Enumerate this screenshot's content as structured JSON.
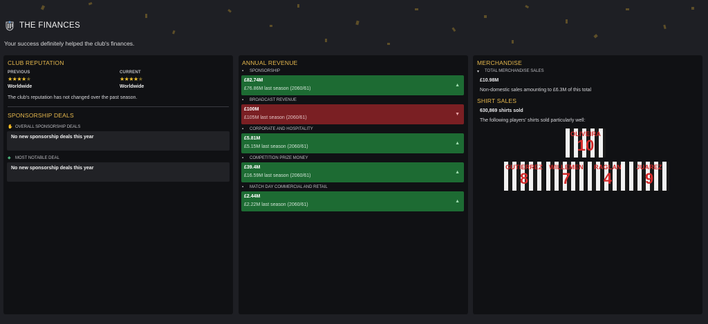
{
  "header": {
    "title": "THE FINANCES",
    "subtitle": "Your success definitely helped the club's finances."
  },
  "club_reputation": {
    "title": "CLUB REPUTATION",
    "previous_label": "PREVIOUS",
    "previous_stars": 4.5,
    "previous_value": "Worldwide",
    "current_label": "CURRENT",
    "current_stars": 4.5,
    "current_value": "Worldwide",
    "note": "The club's reputation has not changed over the past season."
  },
  "sponsorship": {
    "title": "SPONSORSHIP DEALS",
    "overall_label": "OVERALL SPONSORSHIP DEALS",
    "overall_value": "No new sponsorship deals this year",
    "notable_label": "MOST NOTABLE DEAL",
    "notable_value": "No new sponsorship deals this year"
  },
  "revenue": {
    "title": "ANNUAL REVENUE",
    "items": [
      {
        "label": "SPONSORSHIP",
        "value": "£82.74M",
        "last": "£76.86M last season (2060/61)",
        "trend": "up"
      },
      {
        "label": "BROADCAST REVENUE",
        "value": "£100M",
        "last": "£105M last season (2060/61)",
        "trend": "down"
      },
      {
        "label": "CORPORATE AND HOSPITALITY",
        "value": "£5.81M",
        "last": "£5.15M last season (2060/61)",
        "trend": "up"
      },
      {
        "label": "COMPETITION PRIZE MONEY",
        "value": "£39.4M",
        "last": "£16.59M last season (2060/61)",
        "trend": "up"
      },
      {
        "label": "MATCH DAY COMMERCIAL AND RETAIL",
        "value": "£2.44M",
        "last": "£2.22M last season (2060/61)",
        "trend": "up"
      }
    ],
    "up_color": "#1d6b33",
    "down_color": "#7a1f23"
  },
  "merchandise": {
    "title": "MERCHANDISE",
    "total_label": "TOTAL MERCHANDISE SALES",
    "total_value": "£10.98M",
    "note": "Non-domestic sales amounting to £6.3M of this total",
    "shirt_title": "SHIRT SALES",
    "shirt_count": "630,869 shirts sold",
    "shirt_note": "The following players' shirts sold particularly well:",
    "players": [
      {
        "name": "OLIVEIRA",
        "number": "10"
      },
      {
        "name": "GUTIERREZ",
        "number": "8"
      },
      {
        "name": "WILLEMEN",
        "number": "7"
      },
      {
        "name": "RAGLAN",
        "number": "4"
      },
      {
        "name": "JUAREZ",
        "number": "9"
      }
    ]
  },
  "colors": {
    "accent": "#e6b84d",
    "star": "#f2c230"
  }
}
